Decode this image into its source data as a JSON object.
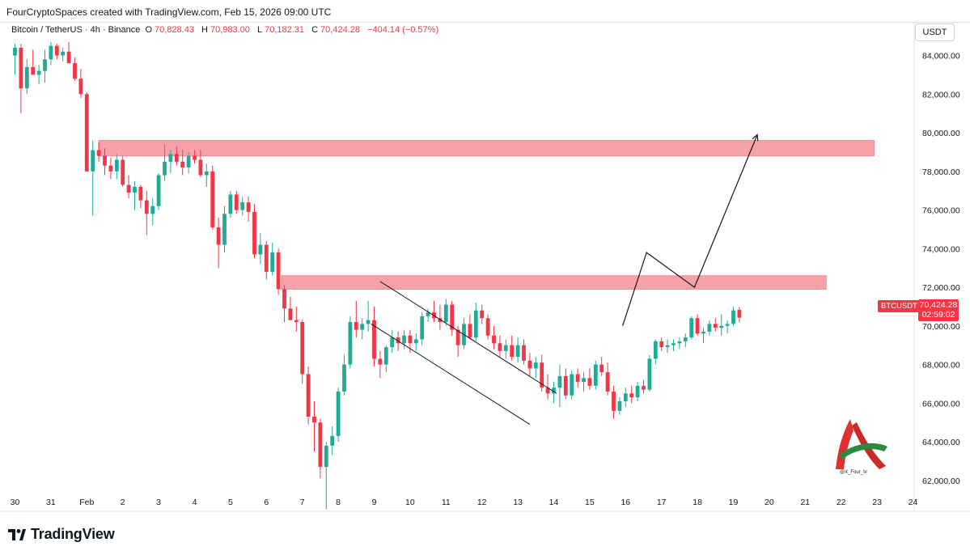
{
  "header": {
    "attribution": "FourCryptoSpaces created with TradingView.com, Feb 15, 2026 09:00 UTC"
  },
  "symbol_info": {
    "name": "Bitcoin / TetherUS · 4h · Binance",
    "open_label": "O",
    "open": "70,828.43",
    "high_label": "H",
    "high": "70,983.00",
    "low_label": "L",
    "low": "70,182.31",
    "close_label": "C",
    "close": "70,424.28",
    "change": "−404.14 (−0.57%)"
  },
  "currency": "USDT",
  "price_tag": {
    "symbol": "BTCUSDT",
    "price": "70,424.28",
    "countdown": "02:59:02"
  },
  "watermark": {
    "handle": "@X_Four_tv"
  },
  "footer": {
    "brand": "TradingView"
  },
  "colors": {
    "up": "#22ab94",
    "down": "#f23645",
    "zone": "#f7a1a9",
    "zone_border": "#f28a95"
  },
  "chart_data": {
    "type": "candlestick",
    "title": "",
    "ylim": [
      60400,
      85700
    ],
    "y_ticks": [
      62000,
      64000,
      66000,
      68000,
      70000,
      72000,
      74000,
      76000,
      78000,
      80000,
      82000,
      84000
    ],
    "y_tick_labels": [
      "62,000.00",
      "64,000.00",
      "66,000.00",
      "68,000.00",
      "70,000.00",
      "72,000.00",
      "74,000.00",
      "76,000.00",
      "78,000.00",
      "80,000.00",
      "82,000.00",
      "84,000.00"
    ],
    "x_ticks": [
      "30",
      "31",
      "Feb",
      "2",
      "3",
      "4",
      "5",
      "6",
      "7",
      "8",
      "9",
      "10",
      "11",
      "12",
      "13",
      "14",
      "15",
      "16",
      "17",
      "18",
      "19",
      "20",
      "21",
      "22",
      "23",
      "24"
    ],
    "x_tick_index": [
      0,
      6,
      12,
      18,
      24,
      30,
      36,
      42,
      48,
      54,
      60,
      66,
      72,
      78,
      84,
      90,
      96,
      102,
      108,
      114,
      120,
      126,
      132,
      138,
      144,
      150
    ],
    "candles": [
      [
        84000,
        84600,
        83000,
        84400
      ],
      [
        84400,
        84600,
        81000,
        82300
      ],
      [
        82300,
        83800,
        82000,
        83400
      ],
      [
        83400,
        84300,
        83000,
        83000
      ],
      [
        83000,
        83500,
        82500,
        83200
      ],
      [
        83200,
        84300,
        82600,
        83800
      ],
      [
        83800,
        84700,
        83500,
        84500
      ],
      [
        84500,
        84600,
        83800,
        84000
      ],
      [
        84000,
        84400,
        83700,
        84200
      ],
      [
        84200,
        84700,
        83600,
        83600
      ],
      [
        83600,
        83900,
        82700,
        82800
      ],
      [
        82800,
        83300,
        81800,
        82000
      ],
      [
        82000,
        82100,
        78000,
        78000
      ],
      [
        78000,
        79600,
        75700,
        79100
      ],
      [
        79100,
        79500,
        78500,
        78800
      ],
      [
        78800,
        79200,
        77800,
        78300
      ],
      [
        78300,
        78700,
        77600,
        78000
      ],
      [
        78000,
        78900,
        77600,
        78600
      ],
      [
        78600,
        78800,
        77200,
        77300
      ],
      [
        77300,
        77800,
        76600,
        76900
      ],
      [
        76900,
        77500,
        76000,
        77200
      ],
      [
        77200,
        77300,
        76100,
        76500
      ],
      [
        76500,
        77000,
        74700,
        75800
      ],
      [
        75800,
        76600,
        75200,
        76200
      ],
      [
        76200,
        77900,
        76000,
        77800
      ],
      [
        77800,
        79400,
        77500,
        78500
      ],
      [
        78500,
        79100,
        77900,
        78900
      ],
      [
        78900,
        79300,
        78300,
        78500
      ],
      [
        78500,
        79100,
        77800,
        78200
      ],
      [
        78200,
        79000,
        77900,
        78800
      ],
      [
        78800,
        79100,
        78400,
        78600
      ],
      [
        78600,
        79100,
        77700,
        77800
      ],
      [
        77800,
        78400,
        77200,
        78000
      ],
      [
        78000,
        78300,
        75000,
        75100
      ],
      [
        75100,
        75600,
        73000,
        74200
      ],
      [
        74200,
        76200,
        73800,
        75800
      ],
      [
        75800,
        77000,
        75600,
        76800
      ],
      [
        76800,
        77000,
        75800,
        76000
      ],
      [
        76000,
        76700,
        75700,
        76400
      ],
      [
        76400,
        76700,
        75400,
        75900
      ],
      [
        75900,
        76300,
        73500,
        73700
      ],
      [
        73700,
        74800,
        73200,
        74200
      ],
      [
        74200,
        74400,
        72400,
        72800
      ],
      [
        72800,
        74300,
        72600,
        73800
      ],
      [
        73800,
        74000,
        71600,
        71900
      ],
      [
        71900,
        72100,
        70200,
        70900
      ],
      [
        70900,
        71500,
        70300,
        70300
      ],
      [
        70300,
        71000,
        69700,
        70200
      ],
      [
        70200,
        70300,
        67000,
        67500
      ],
      [
        67500,
        67900,
        64900,
        65300
      ],
      [
        65300,
        66100,
        63500,
        65000
      ],
      [
        65000,
        65200,
        62100,
        62700
      ],
      [
        62700,
        64000,
        60500,
        63800
      ],
      [
        63800,
        64800,
        63300,
        64300
      ],
      [
        64300,
        66800,
        64000,
        66600
      ],
      [
        66600,
        68500,
        66400,
        68000
      ],
      [
        68000,
        70500,
        67800,
        70200
      ],
      [
        70200,
        71300,
        69400,
        69800
      ],
      [
        69800,
        70400,
        69300,
        70100
      ],
      [
        70100,
        71300,
        69700,
        70300
      ],
      [
        70300,
        71000,
        67900,
        68300
      ],
      [
        68300,
        68700,
        67300,
        68000
      ],
      [
        68000,
        69000,
        67600,
        68900
      ],
      [
        68900,
        69800,
        68600,
        69400
      ],
      [
        69400,
        69700,
        68700,
        69100
      ],
      [
        69100,
        69800,
        68800,
        69500
      ],
      [
        69500,
        69800,
        68600,
        69100
      ],
      [
        69100,
        69600,
        68700,
        69300
      ],
      [
        69300,
        70700,
        69000,
        70500
      ],
      [
        70500,
        70900,
        70200,
        70700
      ],
      [
        70700,
        71300,
        70200,
        70400
      ],
      [
        70400,
        71100,
        69800,
        70200
      ],
      [
        70200,
        71400,
        70000,
        71100
      ],
      [
        71100,
        71300,
        69500,
        69800
      ],
      [
        69800,
        70000,
        68400,
        69000
      ],
      [
        69000,
        70400,
        68800,
        70100
      ],
      [
        70100,
        70600,
        69300,
        69400
      ],
      [
        69400,
        71200,
        69200,
        70800
      ],
      [
        70800,
        71100,
        70100,
        70400
      ],
      [
        70400,
        70600,
        69300,
        69500
      ],
      [
        69500,
        70000,
        68800,
        69100
      ],
      [
        69100,
        69500,
        68400,
        68700
      ],
      [
        68700,
        69300,
        68300,
        69000
      ],
      [
        69000,
        69500,
        68200,
        68400
      ],
      [
        68400,
        69400,
        68100,
        69000
      ],
      [
        69000,
        69300,
        68000,
        68200
      ],
      [
        68200,
        68600,
        67400,
        67800
      ],
      [
        67800,
        68400,
        67300,
        68100
      ],
      [
        68100,
        68500,
        66600,
        66800
      ],
      [
        66800,
        67500,
        66200,
        66500
      ],
      [
        66500,
        67100,
        66000,
        66800
      ],
      [
        66800,
        68000,
        65800,
        67400
      ],
      [
        67400,
        67800,
        66200,
        66400
      ],
      [
        66400,
        67700,
        66200,
        67500
      ],
      [
        67500,
        67800,
        66800,
        67100
      ],
      [
        67100,
        67600,
        66600,
        67300
      ],
      [
        67300,
        67800,
        66700,
        66900
      ],
      [
        66900,
        68200,
        66700,
        68000
      ],
      [
        68000,
        68400,
        67400,
        67600
      ],
      [
        67600,
        68100,
        66400,
        66600
      ],
      [
        66600,
        66900,
        65200,
        65600
      ],
      [
        65600,
        66300,
        65400,
        66100
      ],
      [
        66100,
        66800,
        65800,
        66500
      ],
      [
        66500,
        66900,
        66000,
        66300
      ],
      [
        66300,
        67100,
        66100,
        66900
      ],
      [
        66900,
        67200,
        66500,
        66700
      ],
      [
        66700,
        68500,
        66600,
        68300
      ],
      [
        68300,
        69300,
        68000,
        69200
      ],
      [
        69200,
        69400,
        68700,
        68900
      ],
      [
        68900,
        69300,
        68600,
        69000
      ],
      [
        69000,
        69300,
        68700,
        69100
      ],
      [
        69100,
        69400,
        68800,
        69200
      ],
      [
        69200,
        69600,
        68900,
        69400
      ],
      [
        69400,
        70500,
        69300,
        70400
      ],
      [
        70400,
        70600,
        69500,
        69600
      ],
      [
        69600,
        69900,
        69100,
        69700
      ],
      [
        69700,
        70300,
        69500,
        70100
      ],
      [
        70100,
        70400,
        69700,
        69900
      ],
      [
        69900,
        70600,
        69500,
        70000
      ],
      [
        70000,
        70300,
        69600,
        70100
      ],
      [
        70100,
        71000,
        70000,
        70800
      ],
      [
        70828,
        70983,
        70182,
        70424
      ]
    ],
    "zones": [
      {
        "x_start": 14,
        "x_end": 143.5,
        "y_low": 78800,
        "y_high": 79600
      },
      {
        "x_start": 44.5,
        "x_end": 135.5,
        "y_low": 71900,
        "y_high": 72600
      }
    ],
    "channel_lines": [
      {
        "x1": 61,
        "y1": 72300,
        "x2": 90.5,
        "y2": 66500
      },
      {
        "x1": 59.5,
        "y1": 70100,
        "x2": 86,
        "y2": 64900
      }
    ],
    "projection": {
      "x": [
        101.5,
        105.5,
        113.5,
        124
      ],
      "y": [
        70000,
        73800,
        72000,
        79900
      ]
    },
    "grid": false,
    "legend": "none"
  }
}
